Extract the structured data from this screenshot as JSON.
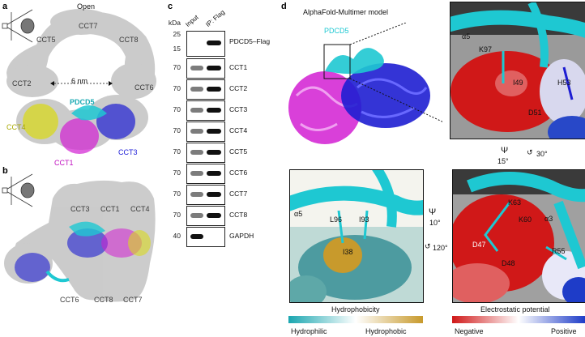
{
  "panels": {
    "a": {
      "letter": "a",
      "title": "Open",
      "labels": [
        "CCT7",
        "CCT5",
        "CCT8",
        "CCT2",
        "CCT6",
        "CCT4",
        "PDCD5",
        "CCT1",
        "CCT3"
      ],
      "distance": "6 nm"
    },
    "b": {
      "letter": "b",
      "labels": [
        "CCT3",
        "CCT1",
        "CCT4",
        "CCT6",
        "CCT8",
        "CCT7"
      ]
    },
    "c": {
      "letter": "c",
      "unit": "kDa",
      "lane_labels": [
        "Input",
        "IP: Flag"
      ],
      "rows": [
        {
          "kda": [
            "25",
            "15"
          ],
          "label": "PDCD5–Flag"
        },
        {
          "kda": [
            "70"
          ],
          "label": "CCT1"
        },
        {
          "kda": [
            "70"
          ],
          "label": "CCT2"
        },
        {
          "kda": [
            "70"
          ],
          "label": "CCT3"
        },
        {
          "kda": [
            "70"
          ],
          "label": "CCT4"
        },
        {
          "kda": [
            "70"
          ],
          "label": "CCT5"
        },
        {
          "kda": [
            "70"
          ],
          "label": "CCT6"
        },
        {
          "kda": [
            "70"
          ],
          "label": "CCT7"
        },
        {
          "kda": [
            "70"
          ],
          "label": "CCT8"
        },
        {
          "kda": [
            "40"
          ],
          "label": "GAPDH"
        }
      ]
    },
    "d": {
      "letter": "d",
      "model_title": "AlphaFold-Multimer model",
      "pdcd5_label": "PDCD5",
      "zoom1": {
        "helix": "α5",
        "residues": [
          "K97",
          "I49",
          "H53",
          "D51"
        ]
      },
      "rotation1": {
        "a": "15°",
        "b": "30°"
      },
      "zoom_hydro": {
        "helix": "α5",
        "residues": [
          "L96",
          "I93",
          "I38"
        ]
      },
      "rotation_hydro": {
        "a": "10°",
        "b": "120°"
      },
      "zoom_elec": {
        "helix": "α3",
        "residues": [
          "K63",
          "K60",
          "D47",
          "D48",
          "R55"
        ]
      },
      "hydro_legend": {
        "title": "Hydrophobicity",
        "low": "Hydrophilic",
        "high": "Hydrophobic"
      },
      "elec_legend": {
        "title": "Electrostatic potential",
        "low": "Negative",
        "high": "Positive"
      }
    }
  },
  "colors": {
    "pdcd5": "#1ec8d2",
    "cct1": "#d21ed2",
    "cct3": "#1e1ed2",
    "cct4": "#d8d81e",
    "density": "#c9c9c9"
  }
}
